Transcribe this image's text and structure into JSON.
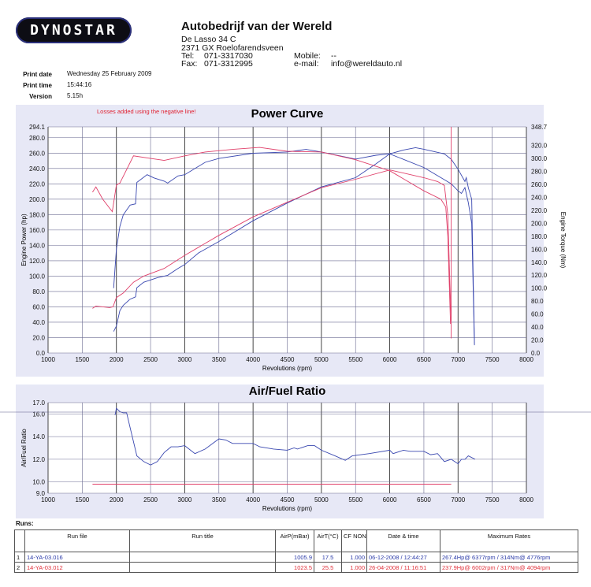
{
  "header": {
    "logo_text": "DYNOSTAR",
    "company": "Autobedrijf van der Wereld",
    "address1": "De Lasso 34 C",
    "address2": "2371 GX Roelofarendsveen",
    "tel_label": "Tel:",
    "tel": "071-3317030",
    "fax_label": "Fax:",
    "fax": "071-3312995",
    "mobile_label": "Mobile:",
    "mobile": "--",
    "email_label": "e-mail:",
    "email": "info@wereldauto.nl"
  },
  "print_info": {
    "date_label": "Print date",
    "date": "Wednesday 25 February 2009",
    "time_label": "Print time",
    "time": "15:44:16",
    "version_label": "Version",
    "version": "5.15h"
  },
  "colors": {
    "run1": "#3a48b0",
    "run2": "#e0406a",
    "panel": "#e7e8f6",
    "grid": "#6a6a90"
  },
  "chart_data": [
    {
      "type": "line",
      "title": "Power Curve",
      "note": "Losses added using the negative line!",
      "xlabel": "Revolutions (rpm)",
      "ylabel": "Engine Power (hp)",
      "y2label": "Engine Torque (Nm)",
      "xlim": [
        1000,
        8000
      ],
      "ylim": [
        0,
        294.1
      ],
      "y2lim": [
        0,
        348.7
      ],
      "xticks": [
        "1000",
        "1500",
        "2000",
        "2500",
        "3000",
        "3500",
        "4000",
        "4500",
        "5000",
        "5500",
        "6000",
        "6500",
        "7000",
        "7500",
        "8000"
      ],
      "yticks": [
        "0.0",
        "20.0",
        "40.0",
        "60.0",
        "80.0",
        "100.0",
        "120.0",
        "140.0",
        "160.0",
        "180.0",
        "200.0",
        "220.0",
        "240.0",
        "260.0",
        "280.0",
        "294.1"
      ],
      "y2ticks": [
        "0.0",
        "20.0",
        "40.0",
        "60.0",
        "80.0",
        "100.0",
        "120.0",
        "140.0",
        "160.0",
        "180.0",
        "200.0",
        "220.0",
        "240.0",
        "260.0",
        "280.0",
        "300.0",
        "320.0",
        "348.7"
      ],
      "grid": true,
      "series": [
        {
          "name": "Run 1 power",
          "run": 1,
          "axis": "left",
          "x": [
            1960,
            2000,
            2050,
            2100,
            2200,
            2280,
            2300,
            2400,
            2500,
            2600,
            2700,
            2750,
            2900,
            3000,
            3200,
            3500,
            4000,
            4500,
            5000,
            5500,
            5800,
            6000,
            6200,
            6377,
            6500,
            6800,
            6900,
            7000,
            7100,
            7120,
            7150,
            7200,
            7240
          ],
          "y": [
            28,
            35,
            55,
            62,
            70,
            73,
            85,
            92,
            95,
            98,
            100,
            101,
            110,
            115,
            130,
            145,
            172,
            195,
            216,
            228,
            246,
            259,
            264,
            267,
            265,
            259,
            252,
            239,
            223,
            228,
            215,
            200,
            12
          ]
        },
        {
          "name": "Run 1 torque",
          "run": 1,
          "axis": "right",
          "x": [
            1960,
            2000,
            2050,
            2100,
            2200,
            2280,
            2300,
            2450,
            2550,
            2700,
            2750,
            2900,
            3000,
            3300,
            3500,
            4000,
            4500,
            4776,
            5000,
            5500,
            5800,
            6000,
            6500,
            6900,
            7000,
            7050,
            7100,
            7150,
            7200,
            7240
          ],
          "y": [
            100,
            160,
            195,
            213,
            228,
            230,
            263,
            275,
            270,
            265,
            262,
            273,
            275,
            294,
            300,
            308,
            310,
            314,
            310,
            299,
            305,
            307,
            286,
            261,
            250,
            246,
            255,
            232,
            200,
            12
          ]
        },
        {
          "name": "Run 2 power",
          "run": 2,
          "axis": "left",
          "x": [
            1650,
            1700,
            1800,
            1900,
            1950,
            2000,
            2100,
            2250,
            2400,
            2700,
            3000,
            3500,
            4000,
            4500,
            5000,
            5500,
            6002,
            6500,
            6700,
            6800,
            6850,
            6880,
            6900
          ],
          "y": [
            58,
            61,
            60,
            59,
            60,
            72,
            78,
            92,
            100,
            110,
            127,
            153,
            177,
            196,
            215,
            226,
            238,
            228,
            223,
            218,
            180,
            90,
            42
          ]
        },
        {
          "name": "Run 2 torque",
          "run": 2,
          "axis": "right",
          "x": [
            1650,
            1700,
            1800,
            1940,
            2000,
            2050,
            2250,
            2500,
            2700,
            3000,
            3300,
            3700,
            4094,
            4500,
            5000,
            5500,
            6000,
            6500,
            6750,
            6820,
            6850,
            6890
          ],
          "y": [
            248,
            256,
            237,
            218,
            259,
            262,
            304,
            300,
            297,
            304,
            310,
            314,
            317,
            311,
            310,
            298,
            281,
            250,
            237,
            225,
            180,
            45
          ]
        },
        {
          "name": "Negative line",
          "run": 2,
          "axis": "left",
          "x": [
            6900,
            6900
          ],
          "y": [
            19,
            294.1
          ]
        }
      ]
    },
    {
      "type": "line",
      "title": "Air/Fuel Ratio",
      "xlabel": "Revolutions (rpm)",
      "ylabel": "Air/Fuel Ratio",
      "xlim": [
        1000,
        8000
      ],
      "ylim": [
        9,
        17
      ],
      "xticks": [
        "1000",
        "1500",
        "2000",
        "2500",
        "3000",
        "3500",
        "4000",
        "4500",
        "5000",
        "5500",
        "6000",
        "6500",
        "7000",
        "7500",
        "8000"
      ],
      "yticks": [
        "9.0",
        "10.0",
        "12.0",
        "14.0",
        "16.0",
        "17.0"
      ],
      "grid": true,
      "series": [
        {
          "name": "Run 1 AFR",
          "run": 1,
          "x": [
            1980,
            2000,
            2050,
            2100,
            2150,
            2200,
            2300,
            2400,
            2500,
            2600,
            2700,
            2800,
            2900,
            3000,
            3150,
            3300,
            3500,
            3600,
            3700,
            4000,
            4100,
            4300,
            4500,
            4600,
            4650,
            4800,
            4900,
            5000,
            5200,
            5350,
            5450,
            5700,
            6000,
            6050,
            6200,
            6300,
            6500,
            6600,
            6700,
            6800,
            6900,
            7000,
            7050,
            7100,
            7150,
            7250
          ],
          "y": [
            15.9,
            16.5,
            16.2,
            16.1,
            16.1,
            14.8,
            12.3,
            11.8,
            11.5,
            11.8,
            12.6,
            13.1,
            13.1,
            13.2,
            12.5,
            12.9,
            13.8,
            13.7,
            13.4,
            13.4,
            13.1,
            12.9,
            12.8,
            13.0,
            12.9,
            13.2,
            13.2,
            12.8,
            12.3,
            11.9,
            12.3,
            12.5,
            12.8,
            12.5,
            12.8,
            12.7,
            12.7,
            12.4,
            12.5,
            11.8,
            12.0,
            11.6,
            12.0,
            12.0,
            12.3,
            12.0
          ]
        },
        {
          "name": "Run 2 AFR",
          "run": 2,
          "x": [
            1650,
            6900
          ],
          "y": [
            9.8,
            9.8
          ]
        }
      ]
    }
  ],
  "runs": {
    "label": "Runs:",
    "columns": [
      "",
      "Run file",
      "Run title",
      "AirP(mBar)",
      "AirT(°C)",
      "CF NONE",
      "Date & time",
      "Maximum Rates"
    ],
    "rows": [
      {
        "n": "1",
        "file": "14-YA-03.016",
        "title": "",
        "airp": "1005.9",
        "airt": "17.5",
        "cf": "1.000",
        "date": "06-12-2008 / 12:44:27",
        "max": "267.4Hp@ 6377rpm / 314Nm@ 4776rpm"
      },
      {
        "n": "2",
        "file": "14-YA-03.012",
        "title": "",
        "airp": "1023.5",
        "airt": "25.5",
        "cf": "1.000",
        "date": "26-04-2008 / 11:16:51",
        "max": "237.9Hp@ 6002rpm / 317Nm@ 4094rpm"
      }
    ]
  }
}
